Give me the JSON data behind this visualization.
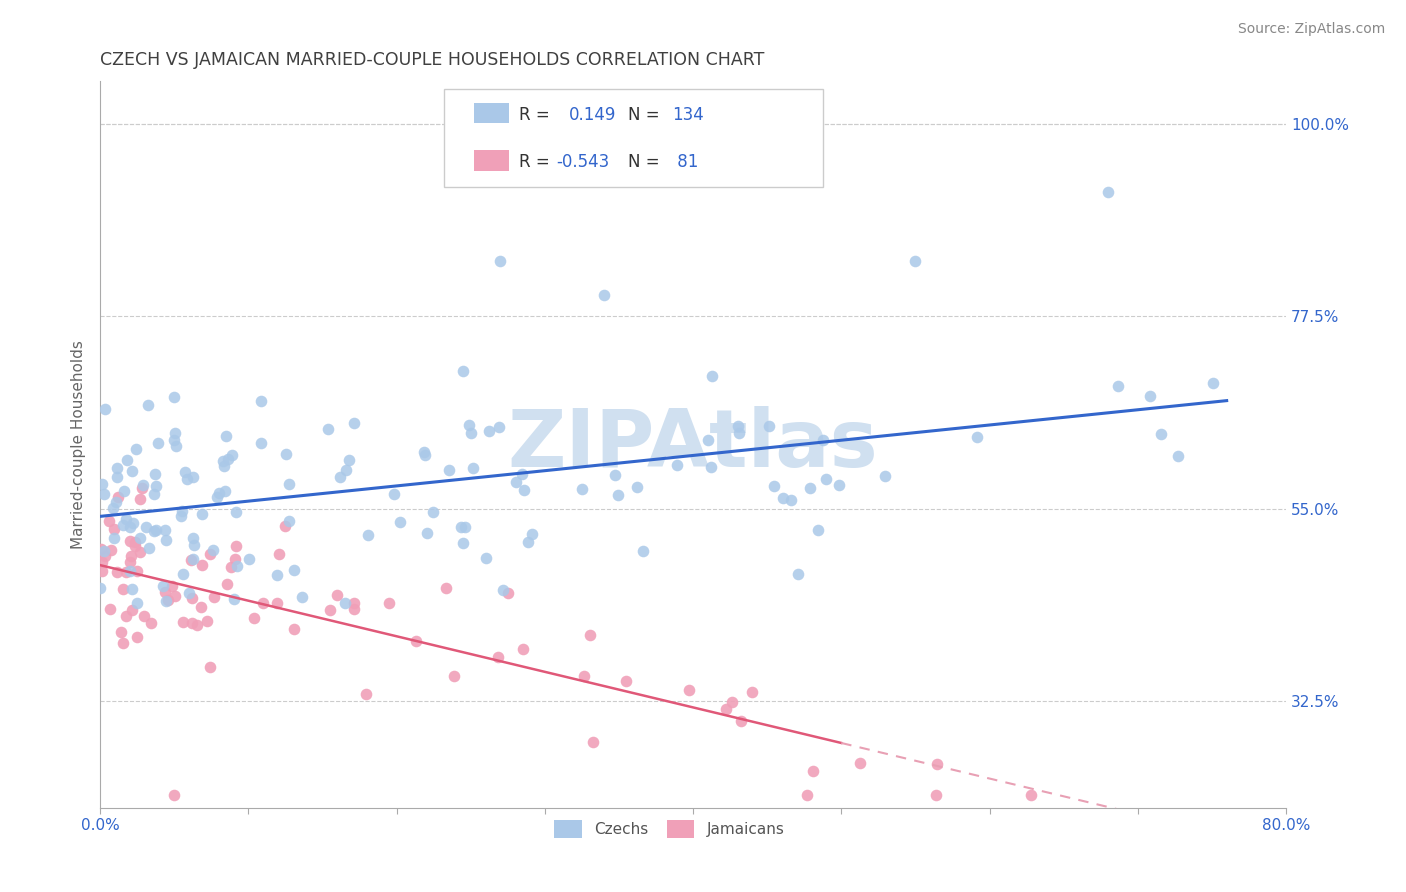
{
  "title": "CZECH VS JAMAICAN MARRIED-COUPLE HOUSEHOLDS CORRELATION CHART",
  "source": "Source: ZipAtlas.com",
  "ylabel": "Married-couple Households",
  "r_czech": 0.149,
  "r_jamaican": -0.543,
  "n_czech": 134,
  "n_jamaican": 81,
  "czech_color": "#aac8e8",
  "jamaican_color": "#f0a0b8",
  "trend_czech_color": "#3366cc",
  "trend_jamaican_color": "#e05878",
  "trend_jamaican_dash_color": "#e8a0b4",
  "watermark_text": "ZIPAtlas",
  "watermark_color": "#d0e0f0",
  "background_color": "#ffffff",
  "title_color": "#404040",
  "legend_value_color": "#3366cc",
  "ytick_color": "#3366cc",
  "xtick_color": "#3366cc",
  "grid_color": "#cccccc",
  "xlim": [
    0.0,
    0.8
  ],
  "ylim": [
    0.2,
    1.05
  ],
  "ytick_vals": [
    0.325,
    0.55,
    0.775,
    1.0
  ],
  "ytick_labels": [
    "32.5%",
    "55.0%",
    "77.5%",
    "100.0%"
  ],
  "xtick_vals": [
    0.0,
    0.1,
    0.2,
    0.3,
    0.4,
    0.5,
    0.6,
    0.7,
    0.8
  ],
  "xtick_labels": [
    "0.0%",
    "",
    "",
    "",
    "",
    "",
    "",
    "",
    "80.0%"
  ]
}
